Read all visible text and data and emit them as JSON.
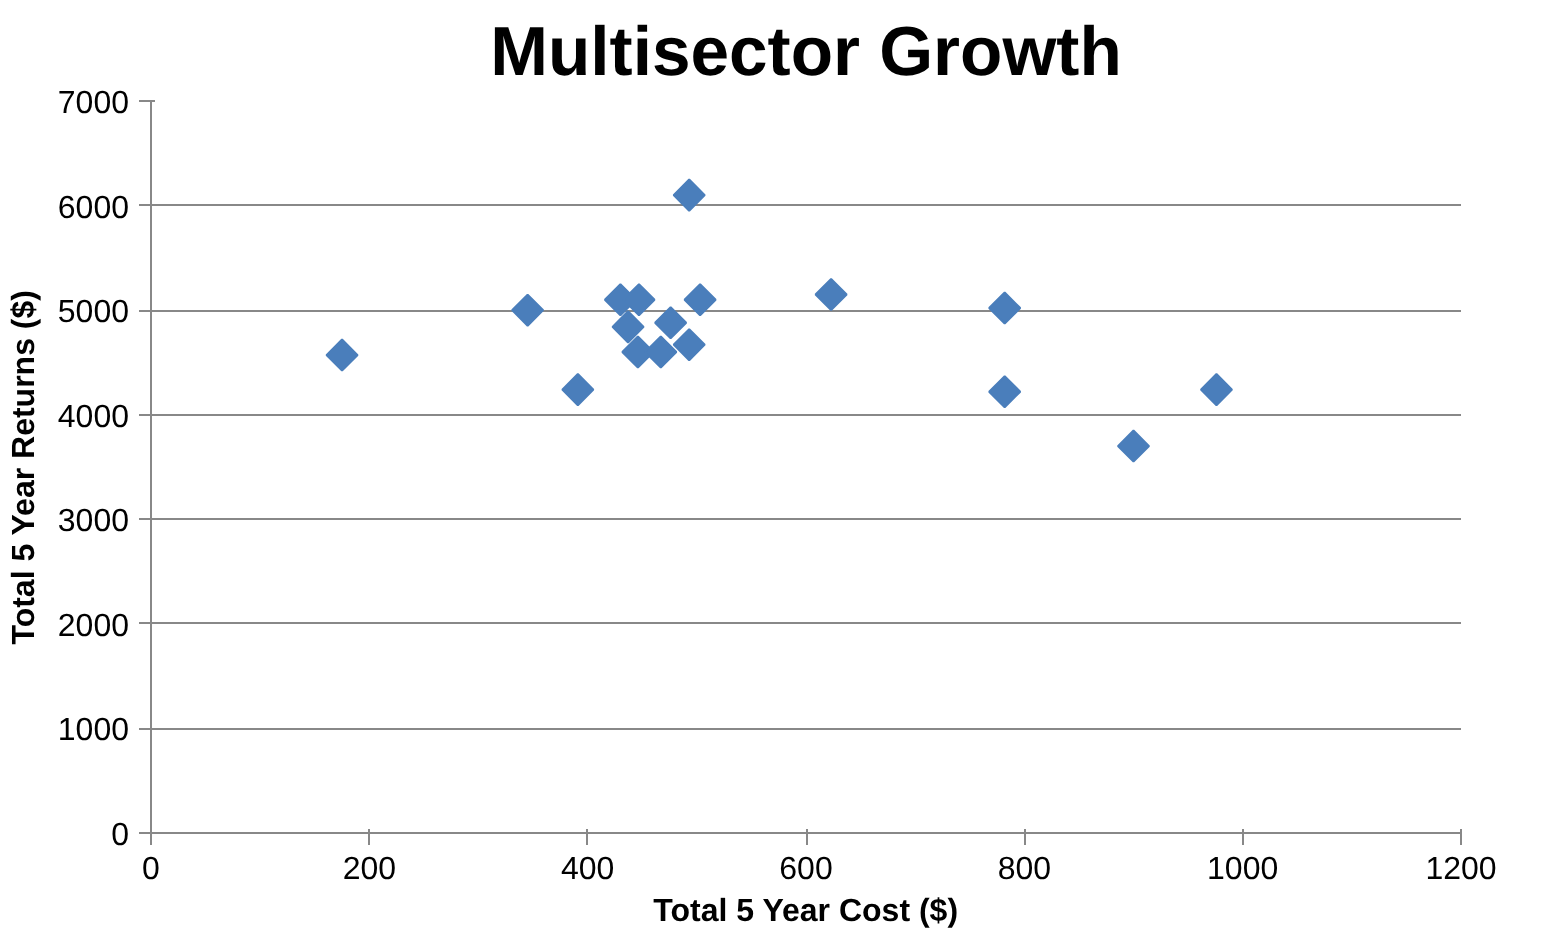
{
  "chart_data": {
    "type": "scatter",
    "title": "Multisector Growth",
    "xlabel": "Total 5 Year Cost ($)",
    "ylabel": "Total 5 Year Returns ($)",
    "x": [
      175,
      345,
      391,
      430,
      447,
      437,
      446,
      467,
      476,
      493,
      503,
      493,
      623,
      782,
      782,
      900,
      976
    ],
    "values": [
      4570,
      5000,
      4240,
      5100,
      5100,
      4840,
      4600,
      4600,
      4880,
      4670,
      5100,
      6100,
      5150,
      5020,
      4220,
      3700,
      4240
    ],
    "color": "#4a7ebb",
    "marker": "diamond",
    "xlim": [
      0,
      1200
    ],
    "ylim": [
      0,
      7000
    ],
    "xticks": [
      0,
      200,
      400,
      600,
      800,
      1000,
      1200
    ],
    "yticks": [
      0,
      1000,
      2000,
      3000,
      4000,
      5000,
      6000,
      7000
    ],
    "grid": "y"
  }
}
